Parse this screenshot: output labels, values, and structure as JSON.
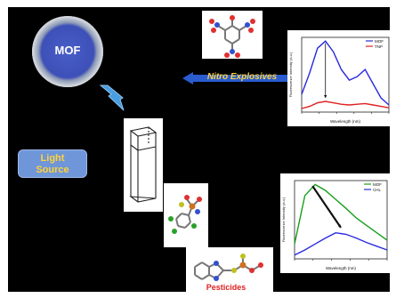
{
  "mof_label": "MOF",
  "light_source": [
    "Light",
    "Source"
  ],
  "nitro_label": "Nitro Explosives",
  "pesticides_label": "Pesticides",
  "colors": {
    "background": "#000000",
    "mof_blue": "#3d50b8",
    "light_box": "#6f96d9",
    "accent_yellow": "#ffd23a",
    "pesticide_red": "#e02020"
  },
  "chart_data": [
    {
      "type": "line",
      "xlabel": "Wavelength (nm)",
      "ylabel": "Fluorescence Intensity (a.u.)",
      "legend": "top-right",
      "series": [
        {
          "name": "MOF",
          "color": "#2a2ae0",
          "x": [
            380,
            400,
            420,
            440,
            460,
            480,
            500,
            520,
            540,
            560,
            580,
            600
          ],
          "y": [
            0.25,
            0.55,
            0.9,
            1.0,
            0.85,
            0.6,
            0.45,
            0.5,
            0.6,
            0.4,
            0.2,
            0.1
          ]
        },
        {
          "name": "TNP",
          "color": "#e02020",
          "x": [
            380,
            400,
            420,
            440,
            460,
            480,
            500,
            520,
            540,
            560,
            580,
            600
          ],
          "y": [
            0.05,
            0.08,
            0.13,
            0.15,
            0.13,
            0.11,
            0.1,
            0.11,
            0.12,
            0.1,
            0.08,
            0.06
          ]
        }
      ]
    },
    {
      "type": "line",
      "xlabel": "Wavelength (nm)",
      "ylabel": "Fluorescence Intensity (a.u.)",
      "legend": "top-right",
      "series": [
        {
          "name": "MOF",
          "color": "#1a9e1a",
          "x": [
            380,
            400,
            420,
            440,
            460,
            480,
            500,
            520,
            540,
            560
          ],
          "y": [
            0.2,
            0.85,
            1.0,
            0.92,
            0.8,
            0.68,
            0.55,
            0.45,
            0.35,
            0.25
          ]
        },
        {
          "name": "CHL",
          "color": "#2a2ae0",
          "x": [
            380,
            400,
            420,
            440,
            460,
            480,
            500,
            520,
            540,
            560
          ],
          "y": [
            0.05,
            0.12,
            0.2,
            0.28,
            0.35,
            0.33,
            0.28,
            0.22,
            0.17,
            0.12
          ]
        }
      ]
    }
  ]
}
